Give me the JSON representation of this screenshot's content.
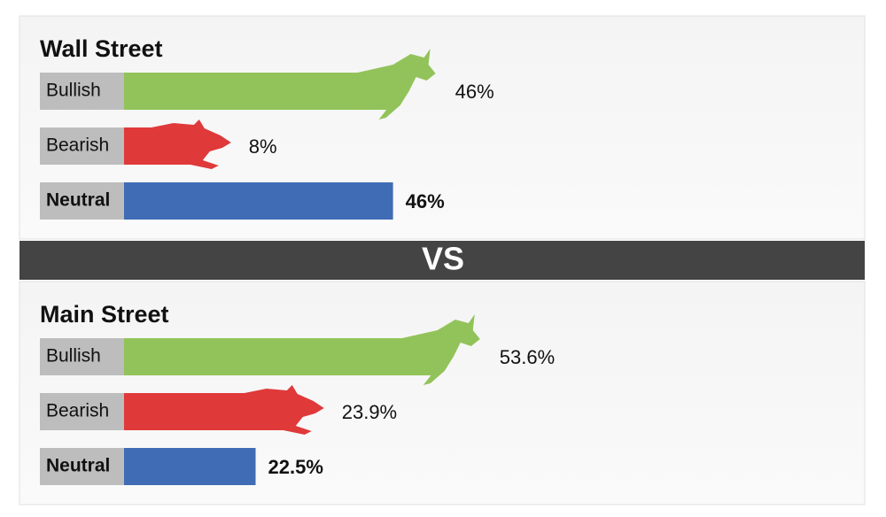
{
  "chart_data": [
    {
      "type": "bar",
      "title": "Wall Street",
      "categories": [
        "Bullish",
        "Bearish",
        "Neutral"
      ],
      "values": [
        46,
        8,
        46
      ],
      "value_labels": [
        "46%",
        "8%",
        "46%"
      ],
      "colors": [
        "#92c35a",
        "#e0393a",
        "#3f6cb5"
      ]
    },
    {
      "type": "bar",
      "title": "Main Street",
      "categories": [
        "Bullish",
        "Bearish",
        "Neutral"
      ],
      "values": [
        53.6,
        23.9,
        22.5
      ],
      "value_labels": [
        "53.6%",
        "23.9%",
        "22.5%"
      ],
      "colors": [
        "#92c35a",
        "#e0393a",
        "#3f6cb5"
      ]
    }
  ],
  "divider": "VS"
}
